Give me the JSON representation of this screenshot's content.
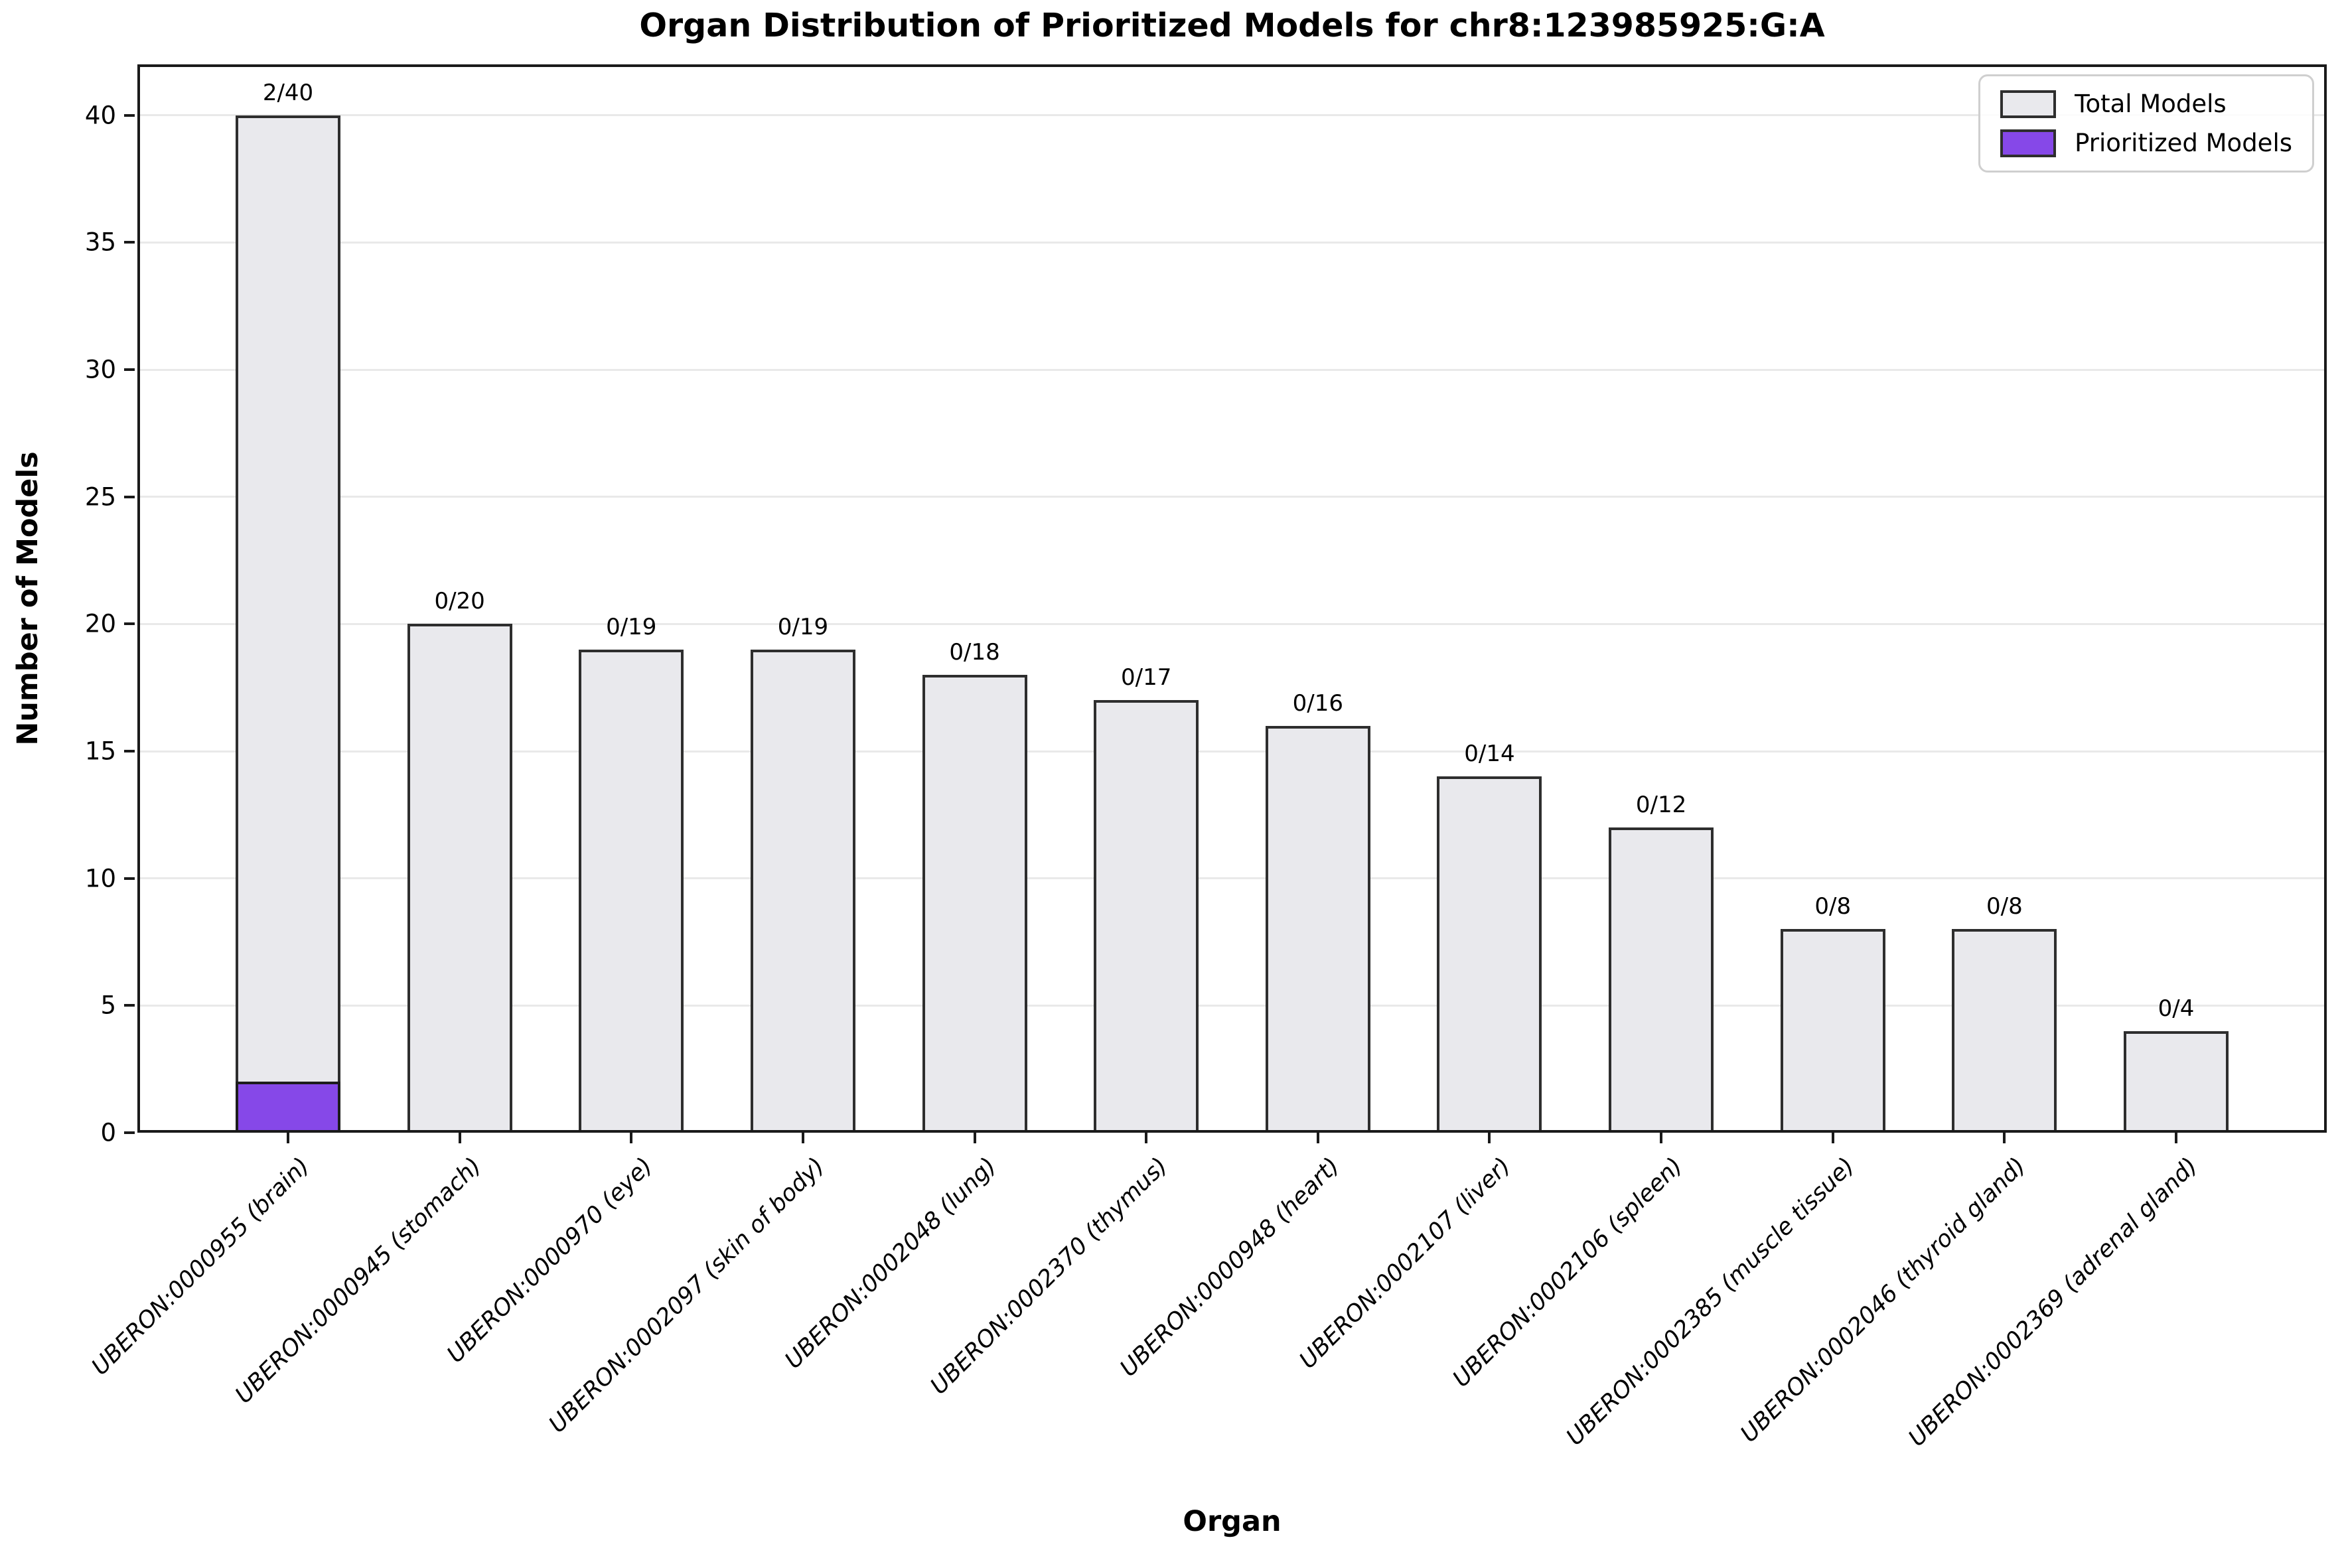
{
  "chart_data": {
    "type": "bar",
    "title": "Organ Distribution of Prioritized Models for chr8:123985925:G:A",
    "xlabel": "Organ",
    "ylabel": "Number of Models",
    "ylim": [
      0,
      42
    ],
    "yticks": [
      0,
      5,
      10,
      15,
      20,
      25,
      30,
      35,
      40
    ],
    "grid": "horizontal",
    "legend_position": "upper right",
    "categories": [
      "UBERON:0000955 (brain)",
      "UBERON:0000945 (stomach)",
      "UBERON:0000970 (eye)",
      "UBERON:0002097 (skin of body)",
      "UBERON:0002048 (lung)",
      "UBERON:0002370 (thymus)",
      "UBERON:0000948 (heart)",
      "UBERON:0002107 (liver)",
      "UBERON:0002106 (spleen)",
      "UBERON:0002385 (muscle tissue)",
      "UBERON:0002046 (thyroid gland)",
      "UBERON:0002369 (adrenal gland)"
    ],
    "series": [
      {
        "name": "Total Models",
        "color": "#e9e9ed",
        "values": [
          40,
          20,
          19,
          19,
          18,
          17,
          16,
          14,
          12,
          8,
          8,
          4
        ]
      },
      {
        "name": "Prioritized Models",
        "color": "#8648e8",
        "values": [
          2,
          0,
          0,
          0,
          0,
          0,
          0,
          0,
          0,
          0,
          0,
          0
        ]
      }
    ],
    "bar_labels": [
      "2/40",
      "0/20",
      "0/19",
      "0/19",
      "0/18",
      "0/17",
      "0/16",
      "0/14",
      "0/12",
      "0/8",
      "0/8",
      "0/4"
    ],
    "bar_edge_color": "#2e2e2e",
    "gridline_color": "#e9e9e9"
  },
  "legend": {
    "items": [
      {
        "label": "Total Models",
        "color": "#e9e9ed"
      },
      {
        "label": "Prioritized Models",
        "color": "#8648e8"
      }
    ]
  }
}
